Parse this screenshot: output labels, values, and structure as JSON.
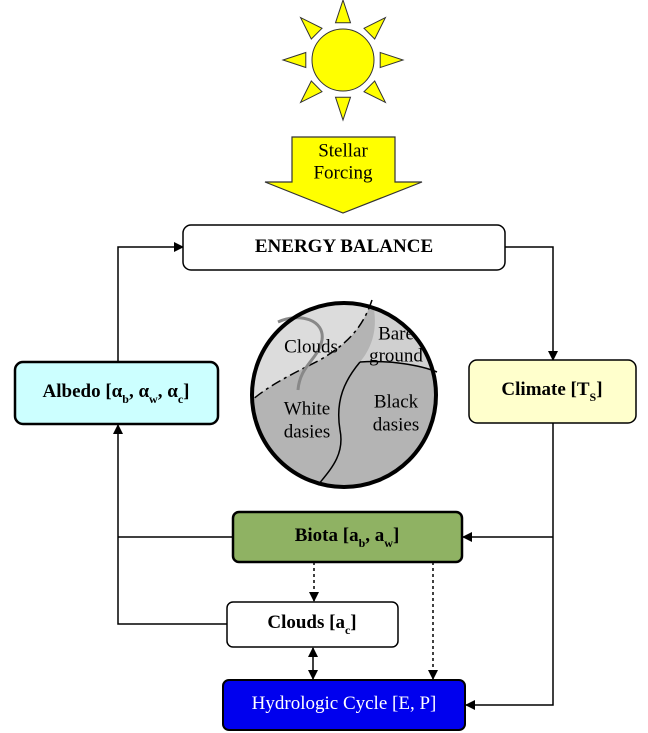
{
  "forcing": [
    "Stellar",
    "Forcing"
  ],
  "boxes": {
    "energy_balance": {
      "parts": [
        "ENERGY BALANCE"
      ]
    },
    "albedo": {
      "parts": [
        "Albedo [α",
        "b",
        ", α",
        "w",
        ", α",
        "c",
        "]"
      ]
    },
    "climate": {
      "parts": [
        "Climate [T",
        "S",
        "]"
      ]
    },
    "biota": {
      "parts": [
        "Biota [a",
        "b",
        ", a",
        "w",
        "]"
      ]
    },
    "clouds": {
      "parts": [
        "Clouds [a",
        "c",
        "]"
      ]
    },
    "hydrologic": {
      "parts": [
        "Hydrologic Cycle [E, P]"
      ]
    }
  },
  "planet": {
    "clouds": [
      "Clouds"
    ],
    "bare_ground": [
      "Bare",
      "ground"
    ],
    "white_daisies": [
      "White",
      "dasies"
    ],
    "black_daisies": [
      "Black",
      "dasies"
    ]
  }
}
